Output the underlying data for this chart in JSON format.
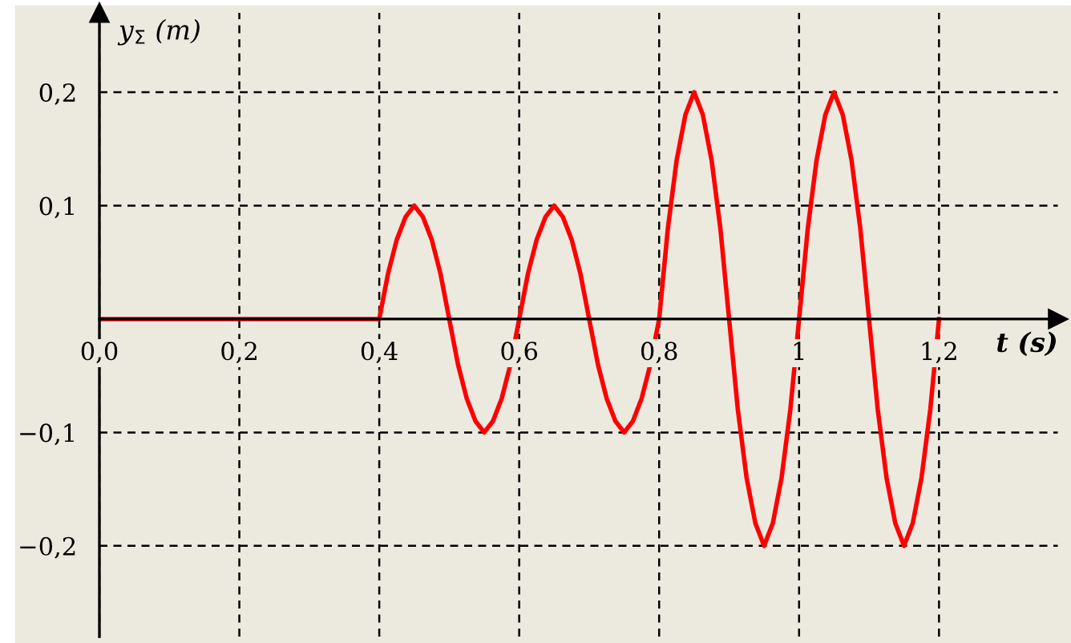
{
  "chart_data": {
    "type": "line",
    "xlabel": "t (s)",
    "ylabel": "y$_{Σ}$ (m)",
    "x": [
      0,
      0.4,
      0.4125,
      0.425,
      0.4375,
      0.45,
      0.4625,
      0.475,
      0.4875,
      0.5,
      0.5125,
      0.525,
      0.5375,
      0.55,
      0.5625,
      0.575,
      0.5875,
      0.6,
      0.6125,
      0.625,
      0.6375,
      0.65,
      0.6625,
      0.675,
      0.6875,
      0.7,
      0.7125,
      0.725,
      0.7375,
      0.75,
      0.7625,
      0.775,
      0.7875,
      0.8,
      0.8125,
      0.825,
      0.8375,
      0.85,
      0.8625,
      0.875,
      0.8875,
      0.9,
      0.9125,
      0.925,
      0.9375,
      0.95,
      0.9625,
      0.975,
      0.9875,
      1.0,
      1.0125,
      1.025,
      1.0375,
      1.05,
      1.0625,
      1.075,
      1.0875,
      1.1,
      1.1125,
      1.125,
      1.1375,
      1.15,
      1.1625,
      1.175,
      1.1875,
      1.2
    ],
    "series": [
      {
        "color": "#ff0000",
        "values": [
          0,
          0,
          0.04,
          0.07,
          0.09,
          0.1,
          0.09,
          0.07,
          0.04,
          0,
          -0.04,
          -0.07,
          -0.09,
          -0.1,
          -0.09,
          -0.07,
          -0.04,
          0,
          0.04,
          0.07,
          0.09,
          0.1,
          0.09,
          0.07,
          0.04,
          0,
          -0.04,
          -0.07,
          -0.09,
          -0.1,
          -0.09,
          -0.07,
          -0.04,
          0,
          0.08,
          0.14,
          0.18,
          0.2,
          0.18,
          0.14,
          0.08,
          0,
          -0.08,
          -0.14,
          -0.18,
          -0.2,
          -0.18,
          -0.14,
          -0.08,
          0,
          0.08,
          0.14,
          0.18,
          0.2,
          0.18,
          0.14,
          0.08,
          0,
          -0.08,
          -0.14,
          -0.18,
          -0.2,
          -0.18,
          -0.14,
          -0.08,
          0
        ]
      }
    ],
    "xlim": [
      0,
      1.37
    ],
    "ylim": [
      -0.28,
      0.27
    ],
    "xticks": [
      {
        "value": 0,
        "label": "0,0"
      },
      {
        "value": 0.2,
        "label": "0,2"
      },
      {
        "value": 0.4,
        "label": "0,4"
      },
      {
        "value": 0.6,
        "label": "0,6"
      },
      {
        "value": 0.8,
        "label": "0,8"
      },
      {
        "value": 1,
        "label": "1"
      },
      {
        "value": 1.2,
        "label": "1,2"
      }
    ],
    "yticks": [
      {
        "value": -0.2,
        "label": "−0,2"
      },
      {
        "value": -0.1,
        "label": "−0,1"
      },
      {
        "value": 0.1,
        "label": "0,1"
      },
      {
        "value": 0.2,
        "label": "0,2"
      }
    ],
    "grid": true,
    "line_style": "solid",
    "marker": "none",
    "legend": false
  }
}
